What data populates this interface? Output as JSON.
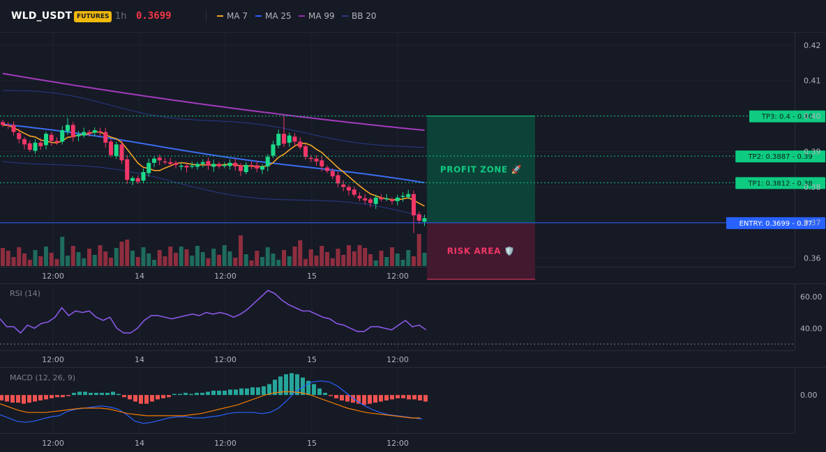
{
  "header": {
    "symbol": "WLD_USDT",
    "badge": "FUTURES",
    "timeframe": "1h",
    "price": "0.3699",
    "indicators": [
      {
        "label": "MA 7",
        "color": "#f5a623"
      },
      {
        "label": "MA 25",
        "color": "#2962ff"
      },
      {
        "label": "MA 99",
        "color": "#9c27b0"
      },
      {
        "label": "BB 20",
        "color": "#2a3b8f"
      }
    ]
  },
  "colors": {
    "up": "#1cd98a",
    "down": "#f23667",
    "vol_up": "#1f6b5d",
    "vol_down": "#8e2e3f",
    "ma7": "#f5a623",
    "ma25": "#3a6df0",
    "ma99": "#a33bbd",
    "bb": "#283a8a",
    "entry": "#2962ff",
    "tp": "#0ecb81",
    "rsi": "#8957e5",
    "macd_line": "#2962ff",
    "signal_line": "#f57c00",
    "hist_pos": "#26a69a",
    "hist_neg": "#ef5350"
  },
  "chart_data": {
    "type": "candlestick",
    "price_axis": {
      "ticks": [
        "0.42",
        "0.41",
        "0.40",
        "0.39",
        "0.38",
        "0.37",
        "0.36"
      ],
      "range": [
        0.3575,
        0.4235
      ]
    },
    "time_labels": [
      "12:00",
      "14",
      "12:00",
      "15",
      "12:00"
    ],
    "levels": [
      {
        "label": "TP3: 0.4",
        "axis": "0.40",
        "value": 0.4
      },
      {
        "label": "TP2: 0.3887",
        "axis": "0.39",
        "value": 0.3887
      },
      {
        "label": "TP1: 0.3812",
        "axis": "0.38",
        "value": 0.3812
      },
      {
        "label": "ENTRY: 0.3699",
        "axis": "0.37",
        "value": 0.3699
      }
    ],
    "zones": {
      "profit": "PROFIT ZONE 🚀",
      "risk": "RISK AREA 🛡️"
    },
    "close": [
      0.3975,
      0.3972,
      0.3955,
      0.3935,
      0.392,
      0.3905,
      0.3925,
      0.3915,
      0.395,
      0.393,
      0.3925,
      0.396,
      0.3975,
      0.394,
      0.3948,
      0.3955,
      0.395,
      0.396,
      0.3955,
      0.3925,
      0.389,
      0.392,
      0.3875,
      0.382,
      0.3825,
      0.3815,
      0.3842,
      0.3868,
      0.388,
      0.3875,
      0.387,
      0.3865,
      0.3862,
      0.386,
      0.3855,
      0.386,
      0.3865,
      0.387,
      0.386,
      0.3865,
      0.3858,
      0.3862,
      0.3868,
      0.3858,
      0.3845,
      0.3862,
      0.3858,
      0.3852,
      0.3858,
      0.3885,
      0.392,
      0.395,
      0.3922,
      0.3945,
      0.3928,
      0.3912,
      0.3885,
      0.388,
      0.3872,
      0.3858,
      0.3845,
      0.383,
      0.381,
      0.38,
      0.379,
      0.3778,
      0.3768,
      0.3762,
      0.3755,
      0.377,
      0.3765,
      0.3768,
      0.376,
      0.377,
      0.3775,
      0.378,
      0.372,
      0.3705,
      0.3712
    ],
    "rsi": {
      "label": "RSI (14)",
      "ticks": [
        "60.00",
        "40.00"
      ],
      "values": [
        46,
        41,
        41,
        37,
        42,
        40,
        43,
        44,
        47,
        53,
        48,
        51,
        50,
        51,
        47,
        45,
        47,
        40,
        37,
        37,
        40,
        45,
        48,
        48,
        47,
        46,
        47,
        48,
        49,
        48,
        50,
        49,
        50,
        49,
        47,
        49,
        52,
        56,
        60,
        64,
        62,
        58,
        55,
        53,
        51,
        51,
        49,
        47,
        46,
        43,
        42,
        40,
        38,
        38,
        41,
        41,
        40,
        39,
        42,
        45,
        41,
        42,
        39
      ],
      "range": [
        26,
        68
      ],
      "dashed_level": 30
    },
    "macd": {
      "label": "MACD (12, 26, 9)",
      "ticks": [
        "0.00"
      ],
      "macd": [
        -0.0018,
        -0.0021,
        -0.0024,
        -0.0025,
        -0.0024,
        -0.0022,
        -0.002,
        -0.0019,
        -0.0015,
        -0.0013,
        -0.0012,
        -0.0011,
        -0.001,
        -0.0011,
        -0.0013,
        -0.0018,
        -0.0024,
        -0.0026,
        -0.0025,
        -0.0023,
        -0.0021,
        -0.002,
        -0.002,
        -0.0021,
        -0.0021,
        -0.002,
        -0.0019,
        -0.0017,
        -0.0016,
        -0.0016,
        -0.0016,
        -0.0017,
        -0.0016,
        -0.0012,
        -0.0005,
        0.0003,
        0.0008,
        0.0012,
        0.0013,
        0.0012,
        0.0008,
        0.0002,
        -0.0004,
        -0.0009,
        -0.0013,
        -0.0016,
        -0.0018,
        -0.0019,
        -0.002,
        -0.0021,
        -0.0022
      ],
      "signal": [
        -0.0008,
        -0.0011,
        -0.0014,
        -0.0016,
        -0.0016,
        -0.0016,
        -0.0015,
        -0.0014,
        -0.0013,
        -0.0012,
        -0.0012,
        -0.0012,
        -0.0013,
        -0.0015,
        -0.0017,
        -0.0018,
        -0.0019,
        -0.0019,
        -0.0019,
        -0.0019,
        -0.0019,
        -0.0018,
        -0.0017,
        -0.0015,
        -0.0013,
        -0.0011,
        -0.0009,
        -0.0006,
        -0.0003,
        0.0,
        0.0002,
        0.0003,
        0.0003,
        0.0002,
        0.0,
        -0.0003,
        -0.0006,
        -0.0009,
        -0.0012,
        -0.0014,
        -0.0016,
        -0.0017,
        -0.0018,
        -0.0019,
        -0.002,
        -0.0021,
        -0.0021
      ],
      "hist": [
        -0.0005,
        -0.0006,
        -0.0007,
        -0.0007,
        -0.0008,
        -0.0007,
        -0.0006,
        -0.0005,
        -0.0004,
        -0.0003,
        -0.0002,
        -0.0002,
        -0.0001,
        0.0002,
        0.0003,
        0.0003,
        0.0002,
        0.0002,
        0.0002,
        0.0002,
        0.0003,
        0.0001,
        -0.0002,
        -0.0004,
        -0.0006,
        -0.0008,
        -0.0008,
        -0.0006,
        -0.0004,
        -0.0003,
        -0.0002,
        0.0001,
        0.0001,
        0.0002,
        0.0001,
        0.0002,
        0.0002,
        0.0003,
        0.0004,
        0.0004,
        0.0004,
        0.0005,
        0.0005,
        0.0006,
        0.0006,
        0.0007,
        0.0007,
        0.0008,
        0.001,
        0.0014,
        0.0017,
        0.0019,
        0.002,
        0.0019,
        0.0016,
        0.0013,
        0.001,
        0.0006,
        0.0002,
        -0.0001,
        -0.0003,
        -0.0005,
        -0.0006,
        -0.0007,
        -0.0008,
        -0.0009,
        -0.0008,
        -0.0007,
        -0.0006,
        -0.0005,
        -0.0004,
        -0.0003,
        -0.0003,
        -0.0004,
        -0.0004,
        -0.0005,
        -0.0006
      ],
      "range": [
        -0.0035,
        0.0025
      ]
    }
  }
}
